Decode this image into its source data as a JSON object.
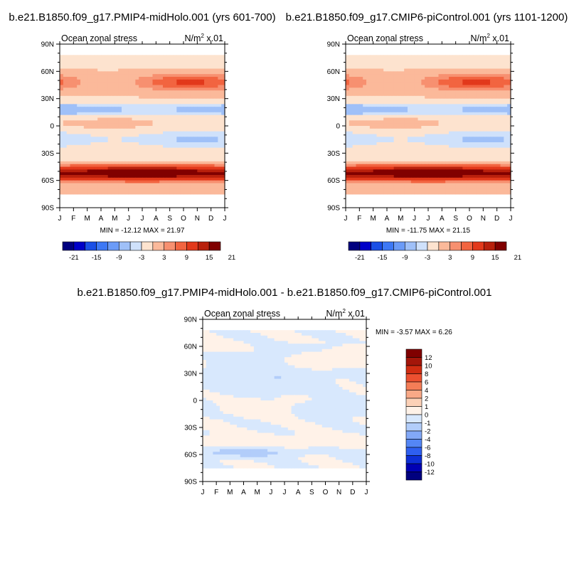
{
  "chart_data": [
    {
      "type": "heatmap",
      "title": "b.e21.B1850.f09_g17.PMIP4-midHolo.001 (yrs 601-700)",
      "left_label": "Ocean zonal stress",
      "units_label": "N/m",
      "units_exp": "2",
      "units_scale": "x.01",
      "x_ticks": [
        "J",
        "F",
        "M",
        "A",
        "M",
        "J",
        "J",
        "A",
        "S",
        "O",
        "N",
        "D",
        "J"
      ],
      "y_ticks": [
        "90N",
        "60N",
        "30N",
        "0",
        "30S",
        "60S",
        "90S"
      ],
      "stats": "MIN = -12.12 MAX =  21.97",
      "min": -12.12,
      "max": 21.97,
      "colorbar_labels": [
        "-21",
        "-15",
        "-9",
        "-3",
        "3",
        "9",
        "15",
        "21"
      ],
      "colorbar_levels": [
        -21,
        -18,
        -15,
        -12,
        -9,
        -6,
        -3,
        0,
        3,
        6,
        9,
        12,
        15,
        18,
        21
      ],
      "colorbar_orientation": "horizontal",
      "field_profile": "mean"
    },
    {
      "type": "heatmap",
      "title": "b.e21.B1850.f09_g17.CMIP6-piControl.001 (yrs 1101-1200)",
      "left_label": "Ocean zonal stress",
      "units_label": "N/m",
      "units_exp": "2",
      "units_scale": "x.01",
      "x_ticks": [
        "J",
        "F",
        "M",
        "A",
        "M",
        "J",
        "J",
        "A",
        "S",
        "O",
        "N",
        "D",
        "J"
      ],
      "y_ticks": [
        "90N",
        "60N",
        "30N",
        "0",
        "30S",
        "60S",
        "90S"
      ],
      "stats": "MIN = -11.75 MAX =  21.15",
      "min": -11.75,
      "max": 21.15,
      "colorbar_labels": [
        "-21",
        "-15",
        "-9",
        "-3",
        "3",
        "9",
        "15",
        "21"
      ],
      "colorbar_levels": [
        -21,
        -18,
        -15,
        -12,
        -9,
        -6,
        -3,
        0,
        3,
        6,
        9,
        12,
        15,
        18,
        21
      ],
      "colorbar_orientation": "horizontal",
      "field_profile": "mean"
    },
    {
      "type": "heatmap",
      "title": "b.e21.B1850.f09_g17.PMIP4-midHolo.001 - b.e21.B1850.f09_g17.CMIP6-piControl.001",
      "left_label": "Ocean zonal stress",
      "units_label": "N/m",
      "units_exp": "2",
      "units_scale": "x.01",
      "x_ticks": [
        "J",
        "F",
        "M",
        "A",
        "M",
        "J",
        "J",
        "A",
        "S",
        "O",
        "N",
        "D",
        "J"
      ],
      "y_ticks": [
        "90N",
        "60N",
        "30N",
        "0",
        "30S",
        "60S",
        "90S"
      ],
      "stats": "MIN =  -3.57 MAX =   6.26",
      "min": -3.57,
      "max": 6.26,
      "colorbar_labels": [
        "12",
        "10",
        "8",
        "6",
        "4",
        "2",
        "1",
        "0",
        "-1",
        "-2",
        "-4",
        "-6",
        "-8",
        "-10",
        "-12"
      ],
      "colorbar_levels": [
        -12,
        -10,
        -8,
        -6,
        -4,
        -2,
        -1,
        0,
        1,
        2,
        4,
        6,
        8,
        10,
        12
      ],
      "colorbar_orientation": "vertical",
      "field_profile": "difference"
    }
  ],
  "palette_14": [
    "#00007f",
    "#0000c8",
    "#1a4fe6",
    "#3d78f5",
    "#6b9bf7",
    "#9fc0f8",
    "#cfe1fb",
    "#fde3cf",
    "#fbb99a",
    "#f79070",
    "#f26440",
    "#e2391b",
    "#b8200c",
    "#800000"
  ],
  "palette_16": [
    "#00007f",
    "#0000b4",
    "#0d2fd6",
    "#2e5ff0",
    "#5486f5",
    "#82a8f7",
    "#b2cdfa",
    "#d8e8fd",
    "#fff2e8",
    "#fcd1b7",
    "#f9a987",
    "#f47d57",
    "#ec5030",
    "#d12d12",
    "#a4160a",
    "#800000"
  ]
}
